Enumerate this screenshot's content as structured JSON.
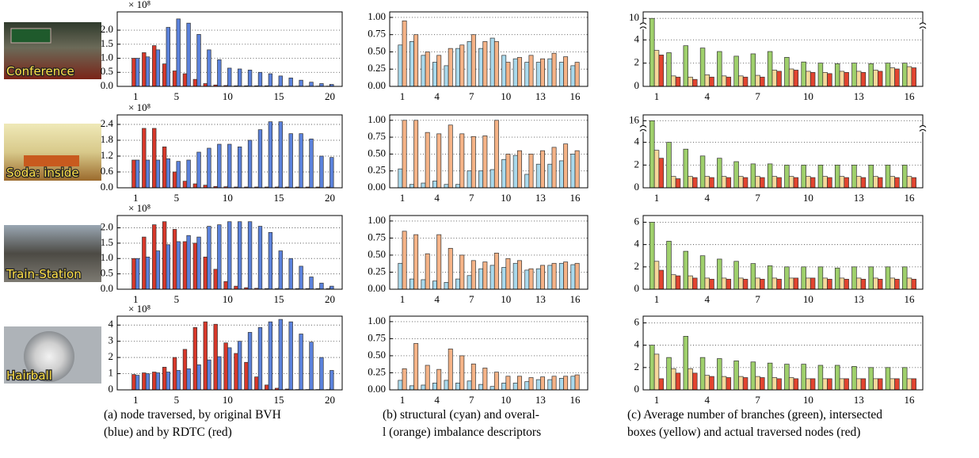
{
  "chart_data": [
    {
      "type": "bar",
      "y_multiplier": "× 10⁸",
      "x": [
        1,
        2,
        3,
        4,
        5,
        6,
        7,
        8,
        9,
        10,
        11,
        12,
        13,
        14,
        15,
        16,
        17,
        18,
        19,
        20
      ],
      "xlim": [
        -0.8,
        21.2
      ],
      "xticks": [
        1,
        5,
        10,
        15,
        20
      ],
      "ylim": [
        0,
        2.65
      ],
      "yticks": [
        {
          "value": 0,
          "label": "0.0"
        },
        0.5,
        {
          "value": 1,
          "label": "1.0"
        },
        1.5,
        {
          "value": 2,
          "label": "2.0"
        }
      ],
      "grid": true,
      "series": [
        {
          "color": "#d8382a",
          "values": [
            1.0,
            1.2,
            1.45,
            0.8,
            0.55,
            0.45,
            0.25,
            0.1,
            0.05,
            0.03,
            0.02,
            0.02,
            0.02,
            0.02,
            0.01,
            0.01,
            0.01,
            0.01,
            0.01,
            0.01
          ]
        },
        {
          "color": "#5b82dc",
          "values": [
            1.0,
            1.05,
            1.3,
            2.1,
            2.4,
            2.25,
            1.85,
            1.3,
            0.95,
            0.65,
            0.62,
            0.58,
            0.5,
            0.45,
            0.37,
            0.3,
            0.22,
            0.15,
            0.1,
            0.07
          ]
        }
      ]
    },
    {
      "type": "bar",
      "x": [
        1,
        2,
        3,
        4,
        5,
        6,
        7,
        8,
        9,
        10,
        11,
        12,
        13,
        14,
        15,
        16
      ],
      "xlim": [
        -0.1,
        17.1
      ],
      "xticks": [
        1,
        4,
        7,
        10,
        13,
        16
      ],
      "ylim": [
        0,
        1.08
      ],
      "yticks": [
        {
          "value": 0,
          "label": "0.00"
        },
        0.25,
        {
          "value": 0.5,
          "label": "0.50"
        },
        0.75,
        {
          "value": 1,
          "label": "1.00"
        }
      ],
      "grid": true,
      "series": [
        {
          "color": "#a9d9ec",
          "values": [
            0.6,
            0.65,
            0.45,
            0.35,
            0.3,
            0.55,
            0.65,
            0.55,
            0.7,
            0.45,
            0.4,
            0.35,
            0.35,
            0.4,
            0.35,
            0.3
          ]
        },
        {
          "color": "#f5b387",
          "values": [
            0.95,
            0.75,
            0.5,
            0.45,
            0.55,
            0.6,
            0.75,
            0.65,
            0.65,
            0.35,
            0.42,
            0.45,
            0.4,
            0.48,
            0.43,
            0.35
          ]
        }
      ]
    },
    {
      "type": "bar",
      "x": [
        1,
        2,
        3,
        4,
        5,
        6,
        7,
        8,
        9,
        10,
        11,
        12,
        13,
        14,
        15,
        16
      ],
      "xlim": [
        0.2,
        16.8
      ],
      "xticks": [
        1,
        4,
        7,
        10,
        13,
        16
      ],
      "ylim": [
        0,
        10.6
      ],
      "ybreak": [
        5,
        9.5
      ],
      "yticks": [
        0,
        2,
        4,
        10
      ],
      "grid": true,
      "series": [
        {
          "color": "#9fd06c",
          "values": [
            10,
            2.9,
            3.5,
            3.3,
            3.0,
            2.6,
            2.8,
            3.0,
            2.5,
            2.1,
            2.0,
            1.95,
            2.0,
            1.95,
            2.0,
            2.0
          ]
        },
        {
          "color": "#f6d89b",
          "values": [
            3.1,
            0.9,
            0.8,
            1.0,
            0.9,
            0.9,
            0.95,
            1.4,
            1.5,
            1.3,
            1.2,
            1.3,
            1.3,
            1.4,
            1.6,
            1.7
          ]
        },
        {
          "color": "#e2442f",
          "values": [
            2.7,
            0.8,
            0.6,
            0.8,
            0.8,
            0.8,
            0.8,
            1.3,
            1.4,
            1.2,
            1.1,
            1.2,
            1.2,
            1.3,
            1.5,
            1.6
          ]
        }
      ]
    },
    {
      "type": "bar",
      "y_multiplier": "× 10⁸",
      "x": [
        1,
        2,
        3,
        4,
        5,
        6,
        7,
        8,
        9,
        10,
        11,
        12,
        13,
        14,
        15,
        16,
        17,
        18,
        19,
        20
      ],
      "xlim": [
        -0.8,
        21.2
      ],
      "xticks": [
        1,
        5,
        10,
        15,
        20
      ],
      "ylim": [
        0,
        2.76
      ],
      "yticks": [
        {
          "value": 0,
          "label": "0.0"
        },
        0.6,
        1.2,
        1.8,
        2.4
      ],
      "grid": true,
      "series": [
        {
          "color": "#d8382a",
          "values": [
            1.05,
            2.25,
            2.25,
            1.55,
            0.6,
            0.25,
            0.15,
            0.1,
            0.05,
            0.04,
            0.03,
            0.03,
            0.03,
            0.03,
            0.03,
            0.03,
            0.03,
            0.03,
            0.03,
            0.03
          ]
        },
        {
          "color": "#5b82dc",
          "values": [
            1.05,
            1.05,
            1.05,
            1.1,
            1.0,
            1.05,
            1.35,
            1.5,
            1.65,
            1.65,
            1.55,
            1.8,
            2.2,
            2.5,
            2.5,
            2.05,
            2.05,
            1.85,
            1.2,
            1.15
          ]
        }
      ]
    },
    {
      "type": "bar",
      "x": [
        1,
        2,
        3,
        4,
        5,
        6,
        7,
        8,
        9,
        10,
        11,
        12,
        13,
        14,
        15,
        16
      ],
      "xlim": [
        -0.1,
        17.1
      ],
      "xticks": [
        1,
        4,
        7,
        10,
        13,
        16
      ],
      "ylim": [
        0,
        1.08
      ],
      "yticks": [
        {
          "value": 0,
          "label": "0.00"
        },
        0.25,
        {
          "value": 0.5,
          "label": "0.50"
        },
        0.75,
        {
          "value": 1,
          "label": "1.00"
        }
      ],
      "grid": true,
      "series": [
        {
          "color": "#a9d9ec",
          "values": [
            0.28,
            0.05,
            0.07,
            0.1,
            0.05,
            0.05,
            0.25,
            0.25,
            0.27,
            0.42,
            0.48,
            0.2,
            0.35,
            0.35,
            0.4,
            0.5
          ]
        },
        {
          "color": "#f5b387",
          "values": [
            1.0,
            1.0,
            0.82,
            0.8,
            0.93,
            0.8,
            0.76,
            0.77,
            1.0,
            0.5,
            0.55,
            0.5,
            0.55,
            0.6,
            0.65,
            0.55
          ]
        }
      ]
    },
    {
      "type": "bar",
      "x": [
        1,
        2,
        3,
        4,
        5,
        6,
        7,
        8,
        9,
        10,
        11,
        12,
        13,
        14,
        15,
        16
      ],
      "xlim": [
        0.2,
        16.8
      ],
      "xticks": [
        1,
        4,
        7,
        10,
        13,
        16
      ],
      "ylim": [
        0,
        16.6
      ],
      "ybreak": [
        5,
        15.4
      ],
      "yticks": [
        0,
        2,
        4,
        16
      ],
      "grid": true,
      "series": [
        {
          "color": "#9fd06c",
          "values": [
            16,
            4.0,
            3.4,
            2.8,
            2.6,
            2.3,
            2.1,
            2.1,
            2.0,
            2.0,
            2.0,
            2.0,
            2.0,
            2.0,
            2.0,
            2.0
          ]
        },
        {
          "color": "#f6d89b",
          "values": [
            3.3,
            1.0,
            1.0,
            1.0,
            1.0,
            1.0,
            1.0,
            1.0,
            1.0,
            1.0,
            1.0,
            1.0,
            1.0,
            1.0,
            1.0,
            1.0
          ]
        },
        {
          "color": "#e2442f",
          "values": [
            2.6,
            0.8,
            0.9,
            0.9,
            0.9,
            0.9,
            0.9,
            0.9,
            0.9,
            0.9,
            0.9,
            0.9,
            0.9,
            0.9,
            0.9,
            0.9
          ]
        }
      ]
    },
    {
      "type": "bar",
      "y_multiplier": "× 10⁸",
      "x": [
        1,
        2,
        3,
        4,
        5,
        6,
        7,
        8,
        9,
        10,
        11,
        12,
        13,
        14,
        15,
        16,
        17,
        18,
        19,
        20
      ],
      "xlim": [
        -0.8,
        21.2
      ],
      "xticks": [
        1,
        5,
        10,
        15,
        20
      ],
      "ylim": [
        0,
        2.4
      ],
      "yticks": [
        {
          "value": 0,
          "label": "0.0"
        },
        0.5,
        {
          "value": 1,
          "label": "1.0"
        },
        1.5,
        {
          "value": 2,
          "label": "2.0"
        }
      ],
      "grid": true,
      "series": [
        {
          "color": "#d8382a",
          "values": [
            1.0,
            1.7,
            2.1,
            2.2,
            1.95,
            1.55,
            1.5,
            1.05,
            0.65,
            0.25,
            0.1,
            0.05,
            0.03,
            0.02,
            0.02,
            0.02,
            0.02,
            0.02,
            0.02,
            0.02
          ]
        },
        {
          "color": "#5b82dc",
          "values": [
            1.0,
            1.05,
            1.25,
            1.45,
            1.55,
            1.75,
            1.7,
            2.05,
            2.1,
            2.2,
            2.2,
            2.2,
            2.05,
            1.85,
            1.25,
            1.0,
            0.75,
            0.4,
            0.2,
            0.1
          ]
        }
      ]
    },
    {
      "type": "bar",
      "x": [
        1,
        2,
        3,
        4,
        5,
        6,
        7,
        8,
        9,
        10,
        11,
        12,
        13,
        14,
        15,
        16
      ],
      "xlim": [
        -0.1,
        17.1
      ],
      "xticks": [
        1,
        4,
        7,
        10,
        13,
        16
      ],
      "ylim": [
        0,
        1.08
      ],
      "yticks": [
        {
          "value": 0,
          "label": "0.00"
        },
        0.25,
        {
          "value": 0.5,
          "label": "0.50"
        },
        0.75,
        {
          "value": 1,
          "label": "1.00"
        }
      ],
      "grid": true,
      "series": [
        {
          "color": "#a9d9ec",
          "values": [
            0.38,
            0.15,
            0.14,
            0.12,
            0.1,
            0.15,
            0.2,
            0.3,
            0.35,
            0.32,
            0.38,
            0.28,
            0.3,
            0.35,
            0.38,
            0.36
          ]
        },
        {
          "color": "#f5b387",
          "values": [
            0.85,
            0.8,
            0.52,
            0.8,
            0.6,
            0.5,
            0.42,
            0.4,
            0.53,
            0.45,
            0.42,
            0.3,
            0.35,
            0.38,
            0.4,
            0.38
          ]
        }
      ]
    },
    {
      "type": "bar",
      "x": [
        1,
        2,
        3,
        4,
        5,
        6,
        7,
        8,
        9,
        10,
        11,
        12,
        13,
        14,
        15,
        16
      ],
      "xlim": [
        0.2,
        16.8
      ],
      "xticks": [
        1,
        4,
        7,
        10,
        13,
        16
      ],
      "ylim": [
        0,
        6.6
      ],
      "yticks": [
        0,
        2,
        4,
        6
      ],
      "grid": true,
      "series": [
        {
          "color": "#9fd06c",
          "values": [
            6,
            4.3,
            3.4,
            3.0,
            2.7,
            2.5,
            2.3,
            2.1,
            2.0,
            2.0,
            2.0,
            1.9,
            2.0,
            2.0,
            2.0,
            2.0
          ]
        },
        {
          "color": "#f6d89b",
          "values": [
            2.5,
            1.3,
            1.2,
            1.0,
            1.0,
            1.0,
            1.0,
            1.0,
            1.0,
            1.0,
            1.0,
            1.0,
            1.0,
            1.0,
            1.0,
            1.0
          ]
        },
        {
          "color": "#e2442f",
          "values": [
            1.7,
            1.2,
            1.0,
            0.9,
            0.9,
            0.9,
            0.9,
            0.9,
            1.0,
            1.0,
            0.9,
            0.9,
            0.9,
            0.9,
            0.9,
            0.9
          ]
        }
      ]
    },
    {
      "type": "bar",
      "y_multiplier": "× 10⁸",
      "x": [
        1,
        2,
        3,
        4,
        5,
        6,
        7,
        8,
        9,
        10,
        11,
        12,
        13,
        14,
        15,
        16,
        17,
        18,
        19,
        20
      ],
      "xlim": [
        -0.8,
        21.2
      ],
      "xticks": [
        1,
        5,
        10,
        15,
        20
      ],
      "ylim": [
        0,
        4.55
      ],
      "yticks": [
        0,
        1,
        2,
        3,
        4
      ],
      "grid": true,
      "series": [
        {
          "color": "#d8382a",
          "values": [
            0.95,
            1.05,
            1.1,
            1.4,
            2.0,
            2.5,
            3.85,
            4.2,
            4.05,
            2.9,
            2.25,
            1.7,
            0.8,
            0.3,
            0.1,
            0.05,
            0.02,
            0.02,
            0.02,
            0.02
          ]
        },
        {
          "color": "#5b82dc",
          "values": [
            0.9,
            1.0,
            1.05,
            1.1,
            1.2,
            1.3,
            1.55,
            1.85,
            2.05,
            2.6,
            3.0,
            3.55,
            3.85,
            4.2,
            4.35,
            4.2,
            3.45,
            2.95,
            2.0,
            1.2
          ]
        }
      ]
    },
    {
      "type": "bar",
      "x": [
        1,
        2,
        3,
        4,
        5,
        6,
        7,
        8,
        9,
        10,
        11,
        12,
        13,
        14,
        15,
        16
      ],
      "xlim": [
        -0.1,
        17.1
      ],
      "xticks": [
        1,
        4,
        7,
        10,
        13,
        16
      ],
      "ylim": [
        0,
        1.08
      ],
      "yticks": [
        {
          "value": 0,
          "label": "0.00"
        },
        0.25,
        {
          "value": 0.5,
          "label": "0.50"
        },
        0.75,
        {
          "value": 1,
          "label": "1.00"
        }
      ],
      "grid": true,
      "series": [
        {
          "color": "#a9d9ec",
          "values": [
            0.14,
            0.06,
            0.07,
            0.1,
            0.14,
            0.1,
            0.13,
            0.08,
            0.05,
            0.1,
            0.1,
            0.12,
            0.15,
            0.15,
            0.17,
            0.2
          ]
        },
        {
          "color": "#f5b387",
          "values": [
            0.31,
            0.68,
            0.36,
            0.3,
            0.6,
            0.5,
            0.38,
            0.32,
            0.26,
            0.2,
            0.2,
            0.18,
            0.19,
            0.2,
            0.2,
            0.22
          ]
        }
      ]
    },
    {
      "type": "bar",
      "x": [
        1,
        2,
        3,
        4,
        5,
        6,
        7,
        8,
        9,
        10,
        11,
        12,
        13,
        14,
        15,
        16
      ],
      "xlim": [
        0.2,
        16.8
      ],
      "xticks": [
        1,
        4,
        7,
        10,
        13,
        16
      ],
      "ylim": [
        0,
        6.6
      ],
      "yticks": [
        0,
        2,
        4,
        6
      ],
      "grid": true,
      "series": [
        {
          "color": "#9fd06c",
          "values": [
            4.0,
            2.9,
            4.8,
            2.9,
            2.8,
            2.6,
            2.5,
            2.4,
            2.3,
            2.3,
            2.2,
            2.2,
            2.1,
            2.0,
            2.0,
            2.0
          ]
        },
        {
          "color": "#f6d89b",
          "values": [
            3.2,
            1.9,
            1.9,
            1.3,
            1.2,
            1.2,
            1.2,
            1.1,
            1.1,
            1.0,
            1.0,
            1.0,
            1.0,
            1.0,
            1.0,
            1.0
          ]
        },
        {
          "color": "#e2442f",
          "values": [
            1.0,
            1.5,
            1.5,
            1.2,
            1.1,
            1.1,
            1.1,
            1.0,
            1.0,
            1.0,
            1.0,
            1.0,
            1.0,
            1.0,
            1.0,
            1.0
          ]
        }
      ]
    }
  ],
  "scenes": [
    "Conference",
    "Soda: inside",
    "Train-Station",
    "Hairball"
  ],
  "captions": [
    [
      "(a) node traversed, by original BVH",
      "(blue) and by RDTC (red)"
    ],
    [
      "(b) structural (cyan) and overal-",
      "l (orange) imbalance descriptors"
    ],
    [
      "(c) Average number of branches (green), intersected",
      "boxes (yellow) and actual traversed nodes (red)"
    ]
  ]
}
